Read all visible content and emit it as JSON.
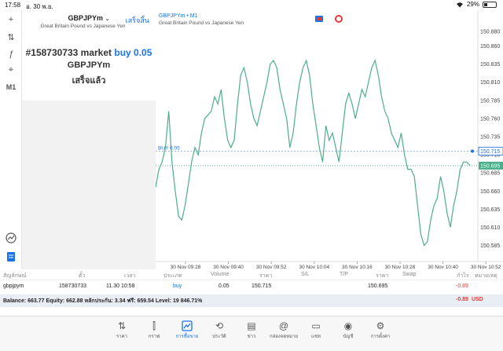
{
  "status": {
    "time": "17:58",
    "date": "อ. 30 พ.ย.",
    "battery": "29%",
    "battery_level": 0.29
  },
  "tools": [
    {
      "name": "crosshair-icon",
      "glyph": "+"
    },
    {
      "name": "indicators-icon",
      "glyph": "⇅"
    },
    {
      "name": "function-icon",
      "glyph": "ƒ"
    },
    {
      "name": "objects-icon",
      "glyph": "⌖"
    },
    {
      "name": "timeframe-button",
      "glyph": "M1"
    }
  ],
  "order_panel": {
    "symbol": "GBPJPYm",
    "done_label": "เสร็จสิ้น",
    "description": "Great Britain Pound vs Japanese Yen",
    "ticket": "#158730733 market",
    "type": "buy 0.05",
    "symbol_line": "GBPJPYm",
    "status": "เสร็จแล้ว"
  },
  "chart_header": {
    "title": "GBPJPYm • M1",
    "subtitle": "Great Britain Pound vs Japanese Yen"
  },
  "chart_data": {
    "type": "line",
    "symbol": "GBPJPYm",
    "timeframe": "M1",
    "x_labels": [
      "30 Nov 09:28",
      "30 Nov 09:40",
      "30 Nov 09:52",
      "30 Nov 10:04",
      "30 Nov 10:16",
      "30 Nov 10:28",
      "30 Nov 10:40",
      "30 Nov 10:52"
    ],
    "y_ticks": [
      "150.880",
      "150.860",
      "150.835",
      "150.810",
      "150.785",
      "150.760",
      "150.735",
      "150.710",
      "150.685",
      "150.660",
      "150.635",
      "150.610",
      "150.585"
    ],
    "ylim": [
      150.565,
      150.905
    ],
    "values": [
      150.665,
      150.69,
      150.7,
      150.72,
      150.77,
      150.7,
      150.66,
      150.625,
      150.62,
      150.64,
      150.67,
      150.7,
      150.72,
      150.71,
      150.74,
      150.76,
      150.765,
      150.77,
      150.79,
      150.78,
      150.8,
      150.76,
      150.73,
      150.72,
      150.73,
      150.78,
      150.82,
      150.83,
      150.81,
      150.78,
      150.76,
      150.75,
      150.77,
      150.79,
      150.81,
      150.835,
      150.84,
      150.83,
      150.8,
      150.78,
      150.76,
      150.72,
      150.74,
      150.78,
      150.81,
      150.83,
      150.84,
      150.82,
      150.78,
      150.75,
      150.72,
      150.7,
      150.75,
      150.73,
      150.74,
      150.72,
      150.7,
      150.74,
      150.78,
      150.795,
      150.78,
      150.76,
      150.78,
      150.8,
      150.79,
      150.81,
      150.83,
      150.84,
      150.82,
      150.79,
      150.77,
      150.76,
      150.74,
      150.73,
      150.72,
      150.74,
      150.71,
      150.69,
      150.69,
      150.68,
      150.64,
      150.6,
      150.585,
      150.59,
      150.62,
      150.64,
      150.65,
      150.68,
      150.66,
      150.63,
      150.61,
      150.64,
      150.66,
      150.69,
      150.7,
      150.7,
      150.695
    ],
    "order_line": {
      "label": "BUY 0.05",
      "price_label": "150.715",
      "price": 150.715
    },
    "bid_line": {
      "price_label": "150.695",
      "price": 150.695
    },
    "grid": false,
    "line_color": "#4cae8a"
  },
  "positions": {
    "headers": [
      "สัญลักษณ์",
      "ตั๋ว",
      "เวลา",
      "ประเภท",
      "Volume",
      "ราคา",
      "S/L",
      "T/P",
      "ราคา",
      "Swap",
      "กำไร",
      "หมายเหตุ"
    ],
    "row": {
      "symbol": "gbpjpym",
      "ticket": "158730733",
      "time": "11.30 10:58",
      "type": "buy",
      "volume": "0.05",
      "open_price": "150.715",
      "current_price": "150.695",
      "profit": "-0.89"
    },
    "balance_text": "Balance: 663.77 Equity: 662.88 หลักประกัน: 3.34 ฟรี: 659.54 Level: 19 846.71%",
    "total_profit": "-0.89",
    "currency": "USD"
  },
  "nav": [
    {
      "name": "nav-quotes",
      "icon": "quotes-icon",
      "glyph": "⇅",
      "label": "ราคา"
    },
    {
      "name": "nav-chart",
      "icon": "candles-icon",
      "glyph": "⫿",
      "label": "กราฟ"
    },
    {
      "name": "nav-trade",
      "icon": "trade-icon",
      "glyph": "📈",
      "label": "การซื้อขาย",
      "active": true
    },
    {
      "name": "nav-history",
      "icon": "history-icon",
      "glyph": "⟲",
      "label": "ประวัติ"
    },
    {
      "name": "nav-news",
      "icon": "news-icon",
      "glyph": "▤",
      "label": "ข่าว"
    },
    {
      "name": "nav-mailbox",
      "icon": "mail-icon",
      "glyph": "@",
      "label": "กล่องจดหมาย"
    },
    {
      "name": "nav-chat",
      "icon": "chat-icon",
      "glyph": "▭",
      "label": "แชท"
    },
    {
      "name": "nav-accounts",
      "icon": "account-icon",
      "glyph": "◉",
      "label": "บัญชี"
    },
    {
      "name": "nav-settings",
      "icon": "gear-icon",
      "glyph": "⚙",
      "label": "การตั้งค่า"
    }
  ]
}
